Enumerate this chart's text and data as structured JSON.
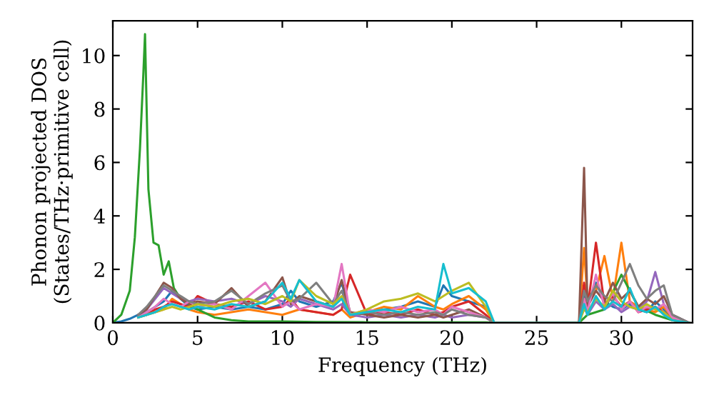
{
  "chart_data": {
    "type": "line",
    "xlabel": "Frequency (THz)",
    "ylabel": "Phonon projected DOS\n(States/THz·primitive cell)",
    "xlim": [
      0,
      34.2
    ],
    "ylim": [
      0,
      11.3
    ],
    "xticks": [
      0,
      5,
      10,
      15,
      20,
      25,
      30
    ],
    "yticks": [
      0,
      2,
      4,
      6,
      8,
      10
    ],
    "grid": false,
    "legend": false,
    "x": [
      0,
      0.5,
      1,
      1.5,
      2,
      2.5,
      3,
      3.5,
      4,
      4.5,
      5,
      6,
      7,
      8,
      9,
      10,
      10.5,
      11,
      12,
      13,
      13.5,
      14,
      15,
      16,
      17,
      18,
      19,
      19.5,
      20,
      21,
      22,
      22.5,
      27.5,
      27.8,
      28,
      28.5,
      29,
      29.5,
      30,
      30.5,
      31,
      31.5,
      32,
      32.5,
      33,
      34
    ],
    "series": [
      {
        "color": "#1f77b4",
        "values": [
          0,
          0.05,
          0.15,
          0.3,
          0.4,
          0.6,
          0.8,
          1.2,
          0.9,
          0.6,
          0.5,
          0.6,
          0.5,
          0.6,
          0.5,
          0.7,
          1.2,
          0.8,
          0.6,
          0.8,
          1.5,
          0.3,
          0.4,
          0.5,
          0.6,
          0.8,
          0.6,
          1.4,
          1.0,
          0.8,
          0.6,
          0,
          0,
          1.0,
          0.6,
          1.5,
          0.8,
          0.6,
          0.5,
          0.7,
          0.5,
          0.4,
          0.8,
          0.5,
          0.2,
          0
        ]
      },
      {
        "color": "#ff7f0e",
        "values": [
          null,
          null,
          null,
          null,
          0.3,
          0.4,
          0.5,
          0.9,
          0.7,
          0.5,
          0.4,
          0.3,
          0.4,
          0.5,
          0.4,
          0.3,
          0.4,
          0.5,
          0.4,
          0.3,
          0.5,
          0.2,
          0.4,
          0.6,
          0.5,
          1.0,
          0.6,
          0.5,
          0.7,
          1.0,
          0.5,
          0,
          0,
          2.8,
          0.8,
          1.2,
          2.5,
          0.9,
          3.0,
          0.8,
          0.6,
          0.5,
          0.4,
          0.6,
          0.2,
          0
        ]
      },
      {
        "color": "#2ca02c",
        "x": [
          0,
          0.5,
          1,
          1.3,
          1.6,
          1.8,
          1.9,
          2.1,
          2.4,
          2.7,
          3.0,
          3.3,
          3.6,
          4,
          5,
          6,
          7,
          8,
          10,
          12,
          15,
          18,
          20,
          22,
          22.5,
          27.5,
          28,
          29,
          30,
          31,
          32,
          33,
          34
        ],
        "values": [
          0,
          0.3,
          1.2,
          3.2,
          6.5,
          9.3,
          10.8,
          5.0,
          3.0,
          2.9,
          1.8,
          2.3,
          1.3,
          0.9,
          0.5,
          0.2,
          0.1,
          0.05,
          0.05,
          0.03,
          0.02,
          0.02,
          0.02,
          0.02,
          0,
          0,
          0.3,
          0.5,
          1.8,
          0.6,
          0.3,
          0.1,
          0
        ]
      },
      {
        "color": "#d62728",
        "values": [
          null,
          null,
          null,
          0.2,
          0.3,
          0.5,
          0.6,
          0.8,
          0.7,
          0.6,
          1.0,
          0.7,
          0.6,
          0.8,
          0.5,
          0.6,
          0.9,
          0.5,
          0.4,
          0.3,
          0.5,
          1.8,
          0.3,
          0.4,
          0.3,
          0.5,
          0.3,
          0.4,
          0.6,
          0.8,
          0.3,
          0,
          0,
          1.5,
          0.5,
          3.0,
          0.7,
          1.0,
          0.6,
          0.8,
          0.4,
          0.5,
          0.6,
          0.4,
          0.1,
          0
        ]
      },
      {
        "color": "#9467bd",
        "values": [
          null,
          null,
          null,
          0.3,
          0.5,
          0.9,
          1.3,
          1.1,
          0.9,
          0.8,
          0.9,
          0.8,
          0.9,
          0.7,
          1.0,
          0.8,
          0.6,
          0.9,
          0.7,
          0.5,
          0.7,
          0.3,
          0.2,
          0.3,
          0.2,
          0.3,
          0.2,
          0.3,
          0.2,
          0.3,
          0.2,
          0,
          0,
          0.6,
          0.3,
          0.8,
          0.5,
          0.7,
          0.4,
          0.6,
          0.5,
          0.8,
          1.9,
          0.7,
          0.3,
          0
        ]
      },
      {
        "color": "#8c564b",
        "values": [
          null,
          null,
          null,
          0.3,
          0.5,
          1.0,
          1.5,
          1.3,
          0.9,
          0.7,
          0.8,
          0.7,
          1.3,
          0.6,
          0.8,
          1.7,
          0.7,
          1.0,
          0.8,
          0.6,
          1.6,
          0.4,
          0.3,
          0.2,
          0.3,
          0.2,
          0.3,
          0.2,
          0.3,
          0.5,
          0.2,
          0,
          0,
          5.8,
          0.6,
          1.2,
          0.8,
          1.5,
          0.9,
          1.2,
          0.6,
          0.9,
          0.7,
          1.0,
          0.3,
          0
        ]
      },
      {
        "color": "#e377c2",
        "values": [
          null,
          null,
          null,
          0.2,
          0.4,
          0.6,
          0.9,
          0.7,
          0.6,
          0.8,
          0.6,
          0.7,
          0.5,
          1.0,
          1.5,
          0.6,
          0.8,
          0.5,
          0.7,
          0.6,
          2.2,
          0.3,
          0.5,
          0.4,
          0.6,
          0.4,
          0.5,
          0.3,
          0.6,
          0.4,
          0.2,
          0,
          0,
          0.9,
          0.4,
          1.8,
          0.6,
          1.1,
          0.5,
          0.8,
          0.4,
          0.6,
          0.5,
          0.7,
          0.2,
          0
        ]
      },
      {
        "color": "#7f7f7f",
        "values": [
          null,
          null,
          null,
          0.3,
          0.6,
          1.0,
          1.4,
          1.2,
          1.0,
          0.8,
          0.7,
          0.8,
          1.2,
          0.7,
          1.1,
          1.4,
          0.8,
          0.9,
          1.5,
          0.7,
          1.2,
          0.3,
          0.4,
          0.3,
          0.4,
          0.3,
          0.4,
          0.3,
          0.5,
          0.3,
          0.2,
          0,
          0,
          1.2,
          0.8,
          1.4,
          1.0,
          0.8,
          1.5,
          2.2,
          1.4,
          0.9,
          1.2,
          1.4,
          0.3,
          0
        ]
      },
      {
        "color": "#bcbd22",
        "values": [
          null,
          null,
          null,
          0.2,
          0.3,
          0.4,
          0.5,
          0.6,
          0.5,
          0.6,
          0.7,
          0.6,
          0.8,
          0.9,
          0.7,
          1.0,
          0.8,
          1.6,
          1.0,
          0.7,
          1.0,
          0.3,
          0.5,
          0.8,
          0.9,
          1.1,
          0.8,
          1.0,
          1.2,
          1.5,
          0.6,
          0,
          0,
          0.5,
          0.4,
          0.9,
          0.6,
          1.2,
          0.8,
          0.6,
          0.5,
          0.7,
          0.5,
          0.4,
          0.1,
          0
        ]
      },
      {
        "color": "#17becf",
        "values": [
          null,
          null,
          null,
          0.2,
          0.3,
          0.4,
          0.6,
          0.7,
          0.6,
          0.5,
          0.6,
          0.5,
          0.7,
          0.6,
          0.8,
          1.5,
          0.9,
          1.6,
          0.8,
          0.6,
          0.9,
          0.3,
          0.4,
          0.5,
          0.4,
          0.6,
          0.5,
          2.2,
          1.1,
          1.3,
          0.8,
          0,
          0,
          0.7,
          0.3,
          1.0,
          0.5,
          0.8,
          0.6,
          1.3,
          0.5,
          0.4,
          0.6,
          0.3,
          0.1,
          0
        ]
      }
    ]
  }
}
